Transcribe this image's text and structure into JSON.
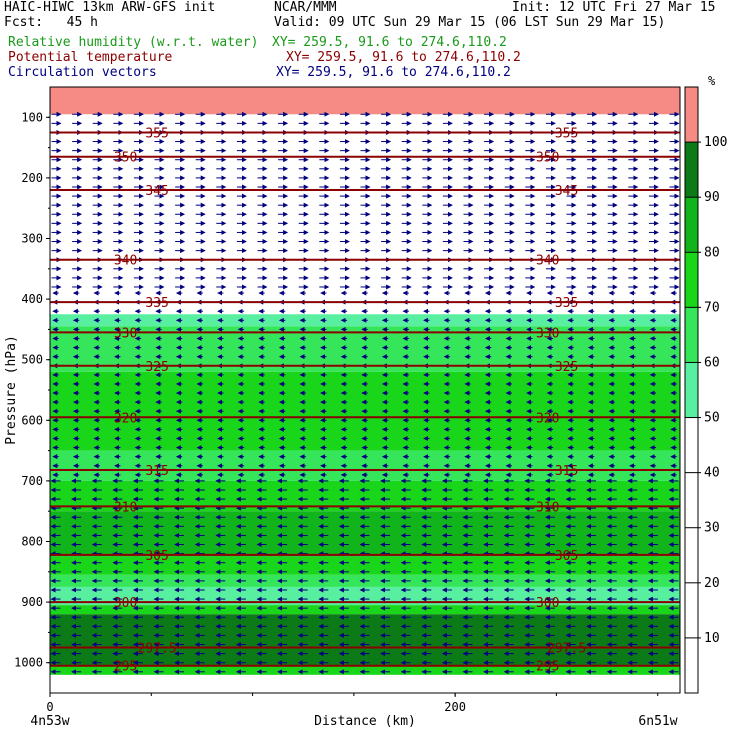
{
  "header": {
    "model_title": "HAIC-HIWC 13km ARW-GFS init",
    "center": "NCAR/MMM",
    "init": "Init: 12 UTC Fri 27 Mar 15",
    "fcst": "Fcst:   45 h",
    "valid": "Valid: 09 UTC Sun 29 Mar 15 (06 LST Sun 29 Mar 15)",
    "fields": [
      {
        "label": "Relative humidity (w.r.t. water)",
        "xy": "XY= 259.5, 91.6 to 274.6,110.2",
        "color": "#1a9a1a"
      },
      {
        "label": "Potential temperature",
        "xy": "XY= 259.5, 91.6 to 274.6,110.2",
        "color": "#8b0000"
      },
      {
        "label": "Circulation vectors",
        "xy": "XY= 259.5, 91.6 to 274.6,110.2",
        "color": "#000080"
      }
    ]
  },
  "chart_data": {
    "type": "heatmap",
    "xlabel": "Distance (km)",
    "ylabel": "Pressure (hPa)",
    "xlim": [
      0,
      311
    ],
    "ylim": [
      1050,
      50
    ],
    "x_ticks": [
      0,
      200
    ],
    "y_ticks": [
      100,
      200,
      300,
      400,
      500,
      600,
      700,
      800,
      900,
      1000
    ],
    "x_endpoint_labels": [
      "4n53w",
      "6n51w"
    ],
    "colorbar": {
      "unit": "%",
      "ticks": [
        10,
        20,
        30,
        40,
        50,
        60,
        70,
        80,
        90,
        100
      ],
      "bands": [
        {
          "from": 50,
          "to": 60,
          "color": "#58f0a0"
        },
        {
          "from": 60,
          "to": 70,
          "color": "#36e65a"
        },
        {
          "from": 70,
          "to": 80,
          "color": "#19d61a"
        },
        {
          "from": 80,
          "to": 90,
          "color": "#12b41c"
        },
        {
          "from": 90,
          "to": 100,
          "color": "#0b7a17"
        },
        {
          "from": 100,
          "to": 110,
          "color": "#f58b84"
        }
      ]
    },
    "rh_layers": [
      {
        "p_top": 50,
        "p_bot": 95,
        "rh": 100
      },
      {
        "p_top": 425,
        "p_bot": 445,
        "rh": 55
      },
      {
        "p_top": 445,
        "p_bot": 520,
        "rh": 65
      },
      {
        "p_top": 520,
        "p_bot": 650,
        "rh": 75
      },
      {
        "p_top": 650,
        "p_bot": 700,
        "rh": 65
      },
      {
        "p_top": 700,
        "p_bot": 750,
        "rh": 75
      },
      {
        "p_top": 750,
        "p_bot": 825,
        "rh": 85
      },
      {
        "p_top": 825,
        "p_bot": 855,
        "rh": 75
      },
      {
        "p_top": 855,
        "p_bot": 875,
        "rh": 65
      },
      {
        "p_top": 875,
        "p_bot": 905,
        "rh": 55
      },
      {
        "p_top": 905,
        "p_bot": 920,
        "rh": 75
      },
      {
        "p_top": 920,
        "p_bot": 1005,
        "rh": 95
      },
      {
        "p_top": 1005,
        "p_bot": 1020,
        "rh": 75
      }
    ],
    "theta_contours": [
      {
        "label": "355",
        "p": 125
      },
      {
        "label": "350",
        "p": 165
      },
      {
        "label": "345",
        "p": 220
      },
      {
        "label": "340",
        "p": 335
      },
      {
        "label": "335",
        "p": 405
      },
      {
        "label": "330",
        "p": 455
      },
      {
        "label": "325",
        "p": 510
      },
      {
        "label": "320",
        "p": 595
      },
      {
        "label": "315",
        "p": 682
      },
      {
        "label": "310",
        "p": 742
      },
      {
        "label": "305",
        "p": 822
      },
      {
        "label": "300",
        "p": 900
      },
      {
        "label": "297.5",
        "p": 975
      },
      {
        "label": "295",
        "p": 1005
      }
    ],
    "wind_layers": [
      {
        "p_from": 95,
        "p_to": 390,
        "u": 1,
        "w": 0
      },
      {
        "p_from": 390,
        "p_to": 700,
        "u": -0.6,
        "w": 0
      },
      {
        "p_from": 700,
        "p_to": 1015,
        "u": -1,
        "w": 0
      }
    ]
  }
}
